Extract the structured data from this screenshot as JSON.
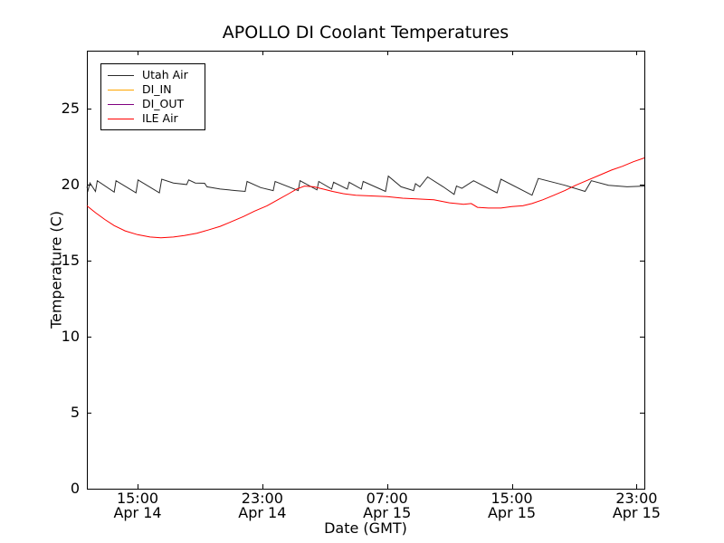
{
  "title": "APOLLO DI Coolant Temperatures",
  "axes": {
    "xlabel": "Date (GMT)",
    "ylabel": "Temperature (C)",
    "x_ticks": [
      {
        "time": "15:00",
        "date": "Apr 14"
      },
      {
        "time": "23:00",
        "date": "Apr 14"
      },
      {
        "time": "07:00",
        "date": "Apr 15"
      },
      {
        "time": "15:00",
        "date": "Apr 15"
      },
      {
        "time": "23:00",
        "date": "Apr 15"
      }
    ],
    "y_ticks": [
      "0",
      "5",
      "10",
      "15",
      "20",
      "25"
    ]
  },
  "legend": {
    "entries": [
      {
        "label": "Utah Air",
        "color": "#2a2a2a"
      },
      {
        "label": "DI_IN",
        "color": "#ffa500"
      },
      {
        "label": "DI_OUT",
        "color": "#800080"
      },
      {
        "label": "ILE Air",
        "color": "#ff0000"
      }
    ]
  },
  "chart_data": {
    "type": "line",
    "title": "APOLLO DI Coolant Temperatures",
    "xlabel": "Date (GMT)",
    "ylabel": "Temperature (C)",
    "x_unit": "hours since Apr 14 00:00 GMT",
    "xlim": [
      11.75,
      47.5
    ],
    "ylim": [
      0,
      28.8
    ],
    "x_tick_positions": [
      15,
      23,
      31,
      39,
      47
    ],
    "y_tick_positions": [
      0,
      5,
      10,
      15,
      20,
      25
    ],
    "grid": false,
    "legend_position": "upper left",
    "series": [
      {
        "name": "Utah Air",
        "color": "#2a2a2a",
        "points": [
          [
            11.75,
            19.85
          ],
          [
            11.82,
            19.6
          ],
          [
            11.95,
            20.1
          ],
          [
            12.3,
            19.55
          ],
          [
            12.42,
            20.25
          ],
          [
            13.5,
            19.5
          ],
          [
            13.62,
            20.25
          ],
          [
            14.9,
            19.45
          ],
          [
            15.03,
            20.3
          ],
          [
            16.4,
            19.45
          ],
          [
            16.55,
            20.35
          ],
          [
            17.3,
            20.1
          ],
          [
            18.15,
            20.0
          ],
          [
            18.28,
            20.3
          ],
          [
            18.7,
            20.1
          ],
          [
            19.3,
            20.08
          ],
          [
            19.45,
            19.85
          ],
          [
            20.3,
            19.7
          ],
          [
            21.3,
            19.6
          ],
          [
            21.9,
            19.55
          ],
          [
            22.02,
            20.2
          ],
          [
            22.9,
            19.8
          ],
          [
            23.7,
            19.6
          ],
          [
            23.82,
            20.2
          ],
          [
            25.3,
            19.6
          ],
          [
            25.42,
            20.25
          ],
          [
            26.5,
            19.65
          ],
          [
            26.62,
            20.2
          ],
          [
            27.45,
            19.7
          ],
          [
            27.57,
            20.15
          ],
          [
            28.45,
            19.7
          ],
          [
            28.57,
            20.15
          ],
          [
            29.35,
            19.7
          ],
          [
            29.47,
            20.2
          ],
          [
            30.9,
            19.55
          ],
          [
            31.08,
            20.55
          ],
          [
            31.9,
            19.85
          ],
          [
            32.7,
            19.6
          ],
          [
            32.82,
            20.05
          ],
          [
            33.1,
            19.85
          ],
          [
            33.6,
            20.5
          ],
          [
            34.6,
            19.85
          ],
          [
            35.3,
            19.35
          ],
          [
            35.45,
            19.9
          ],
          [
            35.8,
            19.75
          ],
          [
            36.55,
            20.25
          ],
          [
            38.05,
            19.45
          ],
          [
            38.3,
            20.35
          ],
          [
            40.3,
            19.3
          ],
          [
            40.7,
            20.4
          ],
          [
            42.4,
            19.95
          ],
          [
            43.7,
            19.55
          ],
          [
            44.1,
            20.25
          ],
          [
            45.2,
            19.95
          ],
          [
            46.4,
            19.85
          ],
          [
            47.5,
            19.9
          ]
        ]
      },
      {
        "name": "DI_IN",
        "color": "#ffa500",
        "points": []
      },
      {
        "name": "DI_OUT",
        "color": "#800080",
        "points": []
      },
      {
        "name": "ILE Air",
        "color": "#ff0000",
        "points": [
          [
            11.75,
            18.6
          ],
          [
            12.3,
            18.15
          ],
          [
            12.9,
            17.7
          ],
          [
            13.5,
            17.3
          ],
          [
            14.2,
            16.95
          ],
          [
            15.0,
            16.7
          ],
          [
            15.8,
            16.55
          ],
          [
            16.5,
            16.5
          ],
          [
            17.3,
            16.55
          ],
          [
            18.0,
            16.65
          ],
          [
            18.8,
            16.8
          ],
          [
            19.5,
            17.0
          ],
          [
            20.3,
            17.25
          ],
          [
            21.0,
            17.55
          ],
          [
            21.8,
            17.9
          ],
          [
            22.5,
            18.25
          ],
          [
            23.3,
            18.6
          ],
          [
            24.0,
            19.0
          ],
          [
            24.7,
            19.4
          ],
          [
            25.2,
            19.7
          ],
          [
            25.7,
            19.9
          ],
          [
            26.3,
            19.85
          ],
          [
            26.9,
            19.7
          ],
          [
            27.5,
            19.55
          ],
          [
            28.2,
            19.4
          ],
          [
            29.0,
            19.3
          ],
          [
            30.0,
            19.25
          ],
          [
            31.0,
            19.2
          ],
          [
            32.0,
            19.1
          ],
          [
            33.0,
            19.05
          ],
          [
            34.0,
            19.0
          ],
          [
            35.0,
            18.8
          ],
          [
            35.9,
            18.7
          ],
          [
            36.4,
            18.75
          ],
          [
            36.8,
            18.5
          ],
          [
            37.5,
            18.45
          ],
          [
            38.3,
            18.45
          ],
          [
            39.0,
            18.55
          ],
          [
            39.7,
            18.6
          ],
          [
            40.3,
            18.75
          ],
          [
            41.0,
            19.0
          ],
          [
            41.7,
            19.3
          ],
          [
            42.4,
            19.6
          ],
          [
            43.1,
            19.95
          ],
          [
            43.9,
            20.3
          ],
          [
            44.7,
            20.65
          ],
          [
            45.4,
            20.95
          ],
          [
            46.1,
            21.2
          ],
          [
            46.8,
            21.5
          ],
          [
            47.5,
            21.75
          ]
        ]
      }
    ]
  }
}
